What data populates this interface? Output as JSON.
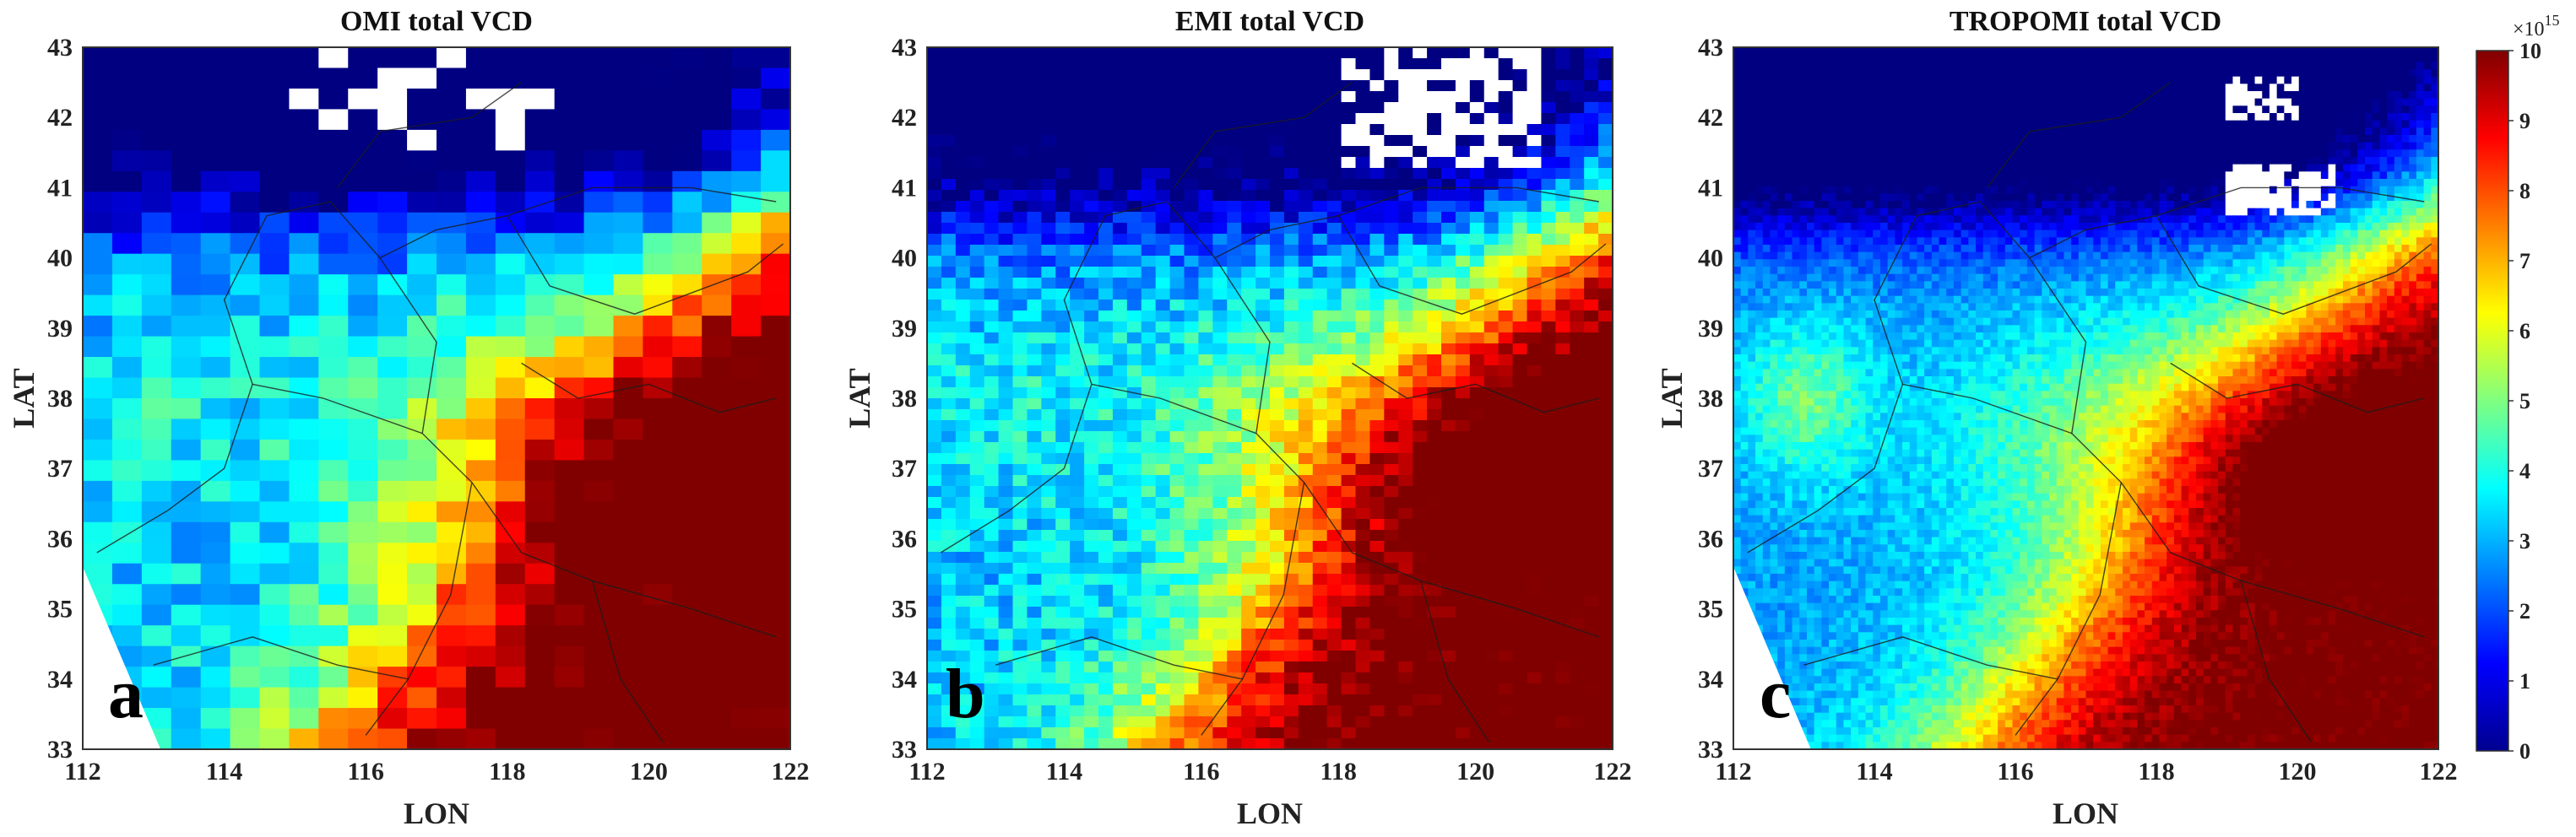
{
  "chart_data": [
    {
      "type": "heatmap",
      "title": "OMI total VCD",
      "panel_label": "a",
      "xlabel": "LON",
      "ylabel": "LAT",
      "xlim": [
        112,
        122
      ],
      "ylim": [
        33,
        43
      ],
      "xticks": [
        "112",
        "114",
        "116",
        "118",
        "120",
        "122"
      ],
      "yticks": [
        "33",
        "34",
        "35",
        "36",
        "37",
        "38",
        "39",
        "40",
        "41",
        "42",
        "43"
      ]
    },
    {
      "type": "heatmap",
      "title": "EMI total VCD",
      "panel_label": "b",
      "xlabel": "LON",
      "ylabel": "LAT",
      "xlim": [
        112,
        122
      ],
      "ylim": [
        33,
        43
      ],
      "xticks": [
        "112",
        "114",
        "116",
        "118",
        "120",
        "122"
      ],
      "yticks": [
        "33",
        "34",
        "35",
        "36",
        "37",
        "38",
        "39",
        "40",
        "41",
        "42",
        "43"
      ]
    },
    {
      "type": "heatmap",
      "title": "TROPOMI total VCD",
      "panel_label": "c",
      "xlabel": "LON",
      "ylabel": "LAT",
      "xlim": [
        112,
        122
      ],
      "ylim": [
        33,
        43
      ],
      "xticks": [
        "112",
        "114",
        "116",
        "118",
        "120",
        "122"
      ],
      "yticks": [
        "33",
        "34",
        "35",
        "36",
        "37",
        "38",
        "39",
        "40",
        "41",
        "42",
        "43"
      ]
    }
  ],
  "colorbar": {
    "range": [
      0,
      10
    ],
    "ticks": [
      "0",
      "1",
      "2",
      "3",
      "4",
      "5",
      "6",
      "7",
      "8",
      "9",
      "10"
    ],
    "multiplier_base": "×10",
    "multiplier_exp": "15",
    "colormap": "jet"
  }
}
